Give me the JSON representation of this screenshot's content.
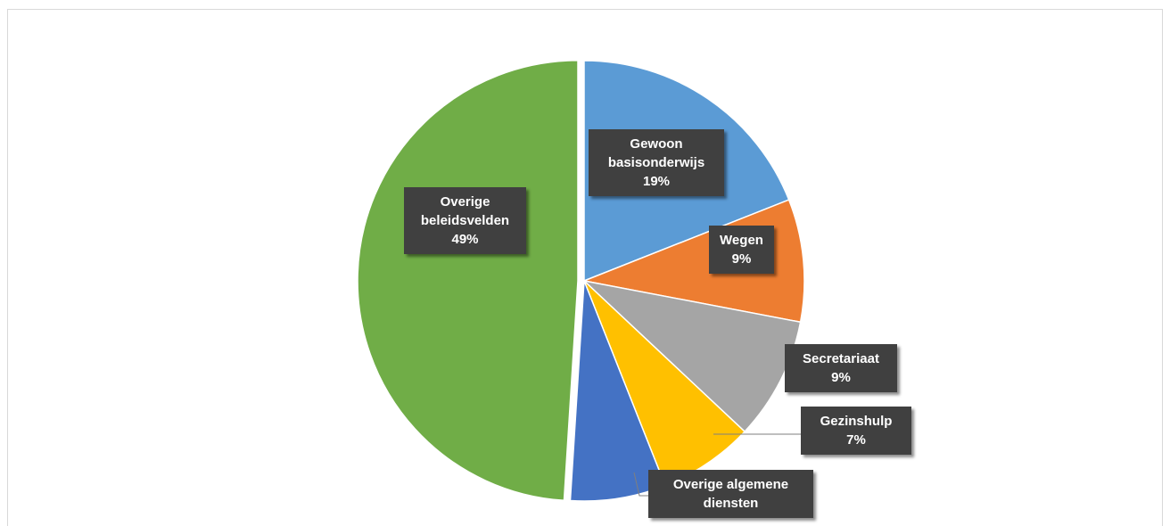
{
  "chart_data": {
    "type": "pie",
    "categories": [
      "Gewoon basisonderwijs",
      "Wegen",
      "Secretariaat",
      "Gezinshulp",
      "Overige algemene diensten",
      "Overige beleidsvelden"
    ],
    "values": [
      19,
      9,
      9,
      7,
      7,
      49
    ],
    "value_labels": [
      "19%",
      "9%",
      "9%",
      "7%",
      null,
      "49%"
    ],
    "colors": [
      "#5b9bd5",
      "#ed7d31",
      "#a5a5a5",
      "#ffc000",
      "#4472c4",
      "#70ad47"
    ],
    "start_angle": 0,
    "direction": "clockwise"
  }
}
